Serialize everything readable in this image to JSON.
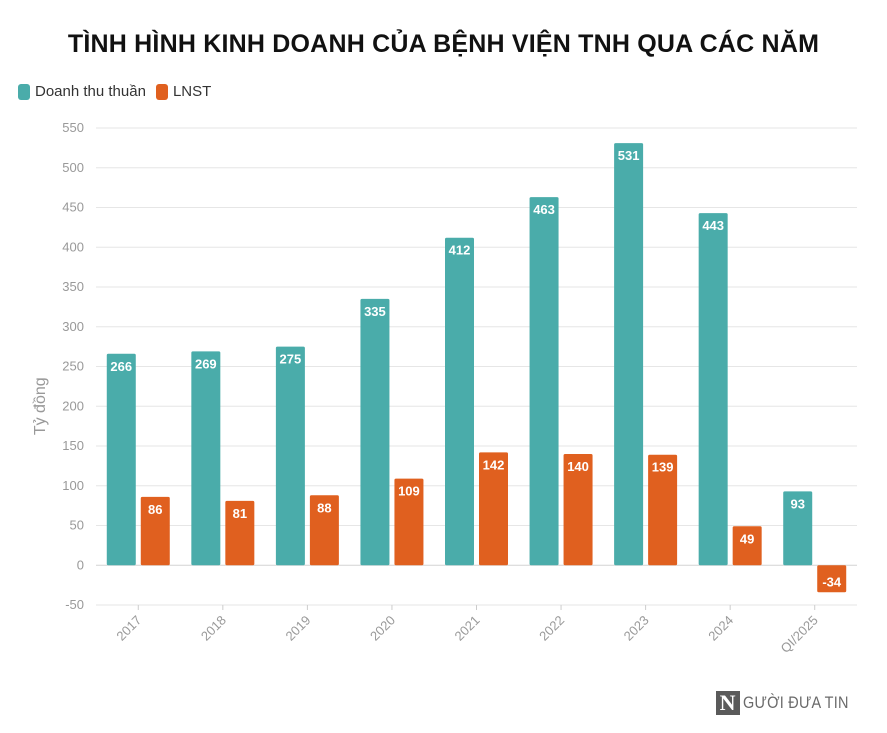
{
  "chart_data": {
    "type": "bar",
    "title": "TÌNH HÌNH KINH DOANH CỦA BỆNH VIỆN TNH QUA CÁC NĂM",
    "ylabel": "Tỷ đồng",
    "xlabel": "",
    "categories": [
      "2017",
      "2018",
      "2019",
      "2020",
      "2021",
      "2022",
      "2023",
      "2024",
      "QI/2025"
    ],
    "series": [
      {
        "name": "Doanh thu thuần",
        "color": "#4aacaa",
        "values": [
          266,
          269,
          275,
          335,
          412,
          463,
          531,
          443,
          93
        ]
      },
      {
        "name": "LNST",
        "color": "#e0601f",
        "values": [
          86,
          81,
          88,
          109,
          142,
          140,
          139,
          49,
          -34
        ]
      }
    ],
    "ylim": [
      -50,
      550
    ],
    "yticks": [
      -50,
      0,
      50,
      100,
      150,
      200,
      250,
      300,
      350,
      400,
      450,
      500,
      550
    ],
    "grid": true,
    "legend_position": "top-left"
  },
  "watermark": {
    "mark": "N",
    "text": "GƯỜI ĐƯA TIN"
  }
}
